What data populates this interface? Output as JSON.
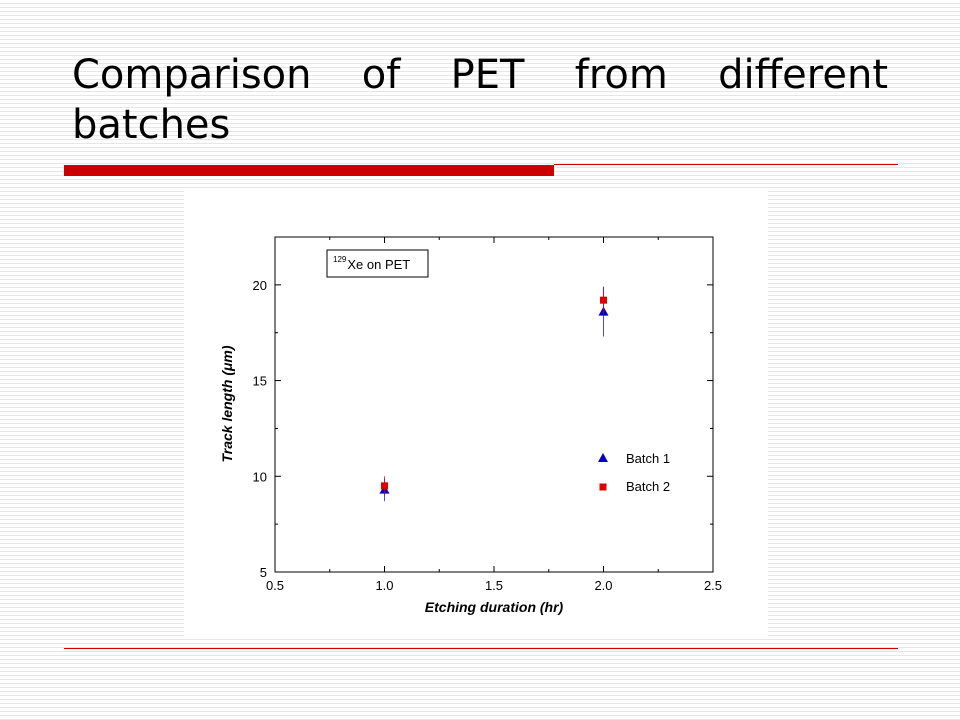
{
  "slide": {
    "title": "Comparison of PET from different batches"
  },
  "chart_data": {
    "type": "scatter",
    "title": "",
    "xlabel": "Etching duration (hr)",
    "ylabel": "Track length (μm)",
    "xlim": [
      0.5,
      2.5
    ],
    "ylim": [
      5,
      22.5
    ],
    "x_ticks": [
      0.5,
      1.0,
      1.5,
      2.0,
      2.5
    ],
    "x_tick_labels": [
      "0.5",
      "1.0",
      "1.5",
      "2.0",
      "2.5"
    ],
    "y_ticks": [
      5,
      10,
      15,
      20
    ],
    "y_tick_labels": [
      "5",
      "10",
      "15",
      "20"
    ],
    "grid": false,
    "legend_position": "center-right",
    "annotation": {
      "superscript": "129",
      "text": "Xe on PET"
    },
    "series": [
      {
        "name": "Batch 1",
        "marker": "triangle",
        "color": "#0000cc",
        "points": [
          {
            "x": 1.0,
            "y": 9.3,
            "err": 0.6
          },
          {
            "x": 2.0,
            "y": 18.6,
            "err": 1.3
          }
        ]
      },
      {
        "name": "Batch 2",
        "marker": "square",
        "color": "#dd0000",
        "points": [
          {
            "x": 1.0,
            "y": 9.5,
            "err": 0.5
          },
          {
            "x": 2.0,
            "y": 19.2,
            "err": 0.7
          }
        ]
      }
    ]
  }
}
